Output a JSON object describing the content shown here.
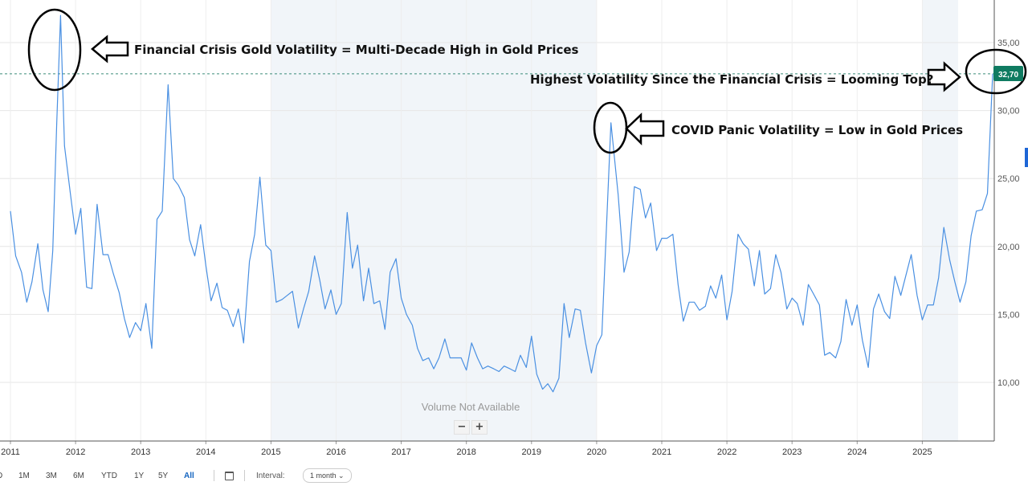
{
  "chart_data": {
    "type": "line",
    "x_tick_labels": [
      "2011",
      "2012",
      "2013",
      "2014",
      "2015",
      "2016",
      "2017",
      "2018",
      "2019",
      "2020",
      "2021",
      "2022",
      "2023",
      "2024",
      "2025"
    ],
    "y_tick_labels": [
      "10,00",
      "15,00",
      "20,00",
      "25,00",
      "30,00",
      "35,00"
    ],
    "ylim": [
      5,
      38
    ],
    "xlim": [
      2011.0,
      2026.1
    ],
    "grid": true,
    "series": [
      {
        "color": "#4a90e2",
        "x": [
          2011.0,
          2011.08,
          2011.17,
          2011.25,
          2011.33,
          2011.42,
          2011.5,
          2011.58,
          2011.65,
          2011.71,
          2011.77,
          2011.83,
          2011.92,
          2012.0,
          2012.08,
          2012.17,
          2012.25,
          2012.33,
          2012.42,
          2012.5,
          2012.58,
          2012.67,
          2012.75,
          2012.83,
          2012.92,
          2013.0,
          2013.08,
          2013.17,
          2013.25,
          2013.33,
          2013.42,
          2013.5,
          2013.58,
          2013.67,
          2013.75,
          2013.83,
          2013.92,
          2014.0,
          2014.08,
          2014.17,
          2014.25,
          2014.33,
          2014.42,
          2014.5,
          2014.58,
          2014.67,
          2014.75,
          2014.83,
          2014.92,
          2015.0,
          2015.08,
          2015.17,
          2015.25,
          2015.33,
          2015.42,
          2015.5,
          2015.58,
          2015.67,
          2015.75,
          2015.83,
          2015.92,
          2016.0,
          2016.08,
          2016.17,
          2016.25,
          2016.33,
          2016.42,
          2016.5,
          2016.58,
          2016.67,
          2016.75,
          2016.83,
          2016.92,
          2017.0,
          2017.08,
          2017.17,
          2017.25,
          2017.33,
          2017.42,
          2017.5,
          2017.58,
          2017.67,
          2017.75,
          2017.83,
          2017.92,
          2018.0,
          2018.08,
          2018.17,
          2018.25,
          2018.33,
          2018.42,
          2018.5,
          2018.58,
          2018.67,
          2018.75,
          2018.83,
          2018.92,
          2019.0,
          2019.08,
          2019.17,
          2019.25,
          2019.33,
          2019.42,
          2019.5,
          2019.58,
          2019.67,
          2019.75,
          2019.83,
          2019.92,
          2020.0,
          2020.08,
          2020.22,
          2020.33,
          2020.42,
          2020.5,
          2020.58,
          2020.67,
          2020.75,
          2020.83,
          2020.92,
          2021.0,
          2021.08,
          2021.17,
          2021.25,
          2021.33,
          2021.42,
          2021.5,
          2021.58,
          2021.67,
          2021.75,
          2021.83,
          2021.92,
          2022.0,
          2022.08,
          2022.17,
          2022.25,
          2022.33,
          2022.42,
          2022.5,
          2022.58,
          2022.67,
          2022.75,
          2022.83,
          2022.92,
          2023.0,
          2023.08,
          2023.17,
          2023.25,
          2023.33,
          2023.42,
          2023.5,
          2023.58,
          2023.67,
          2023.75,
          2023.83,
          2023.92,
          2024.0,
          2024.08,
          2024.17,
          2024.25,
          2024.33,
          2024.42,
          2024.5,
          2024.58,
          2024.67,
          2024.75,
          2024.83,
          2024.92,
          2025.0,
          2025.08,
          2025.17,
          2025.25,
          2025.33,
          2025.42,
          2025.5,
          2025.58,
          2025.67,
          2025.75,
          2025.83,
          2025.92,
          2026.0,
          2026.08
        ],
        "y": [
          22.6,
          19.3,
          18.1,
          15.9,
          17.4,
          20.2,
          16.8,
          15.2,
          19.7,
          29.0,
          37.0,
          27.4,
          23.9,
          20.9,
          22.8,
          17.0,
          16.9,
          23.1,
          19.4,
          19.4,
          18.0,
          16.6,
          14.7,
          13.3,
          14.4,
          13.8,
          15.8,
          12.5,
          22.0,
          22.6,
          31.9,
          25.0,
          24.5,
          23.6,
          20.5,
          19.3,
          21.6,
          18.6,
          16.0,
          17.3,
          15.5,
          15.3,
          14.1,
          15.4,
          12.9,
          18.9,
          20.9,
          25.1,
          20.1,
          19.7,
          15.9,
          16.1,
          16.4,
          16.7,
          14.0,
          15.4,
          16.7,
          19.3,
          17.5,
          15.4,
          16.8,
          15.0,
          15.8,
          22.5,
          18.4,
          20.1,
          16.0,
          18.4,
          15.8,
          16.0,
          13.9,
          18.1,
          19.1,
          16.2,
          15.0,
          14.2,
          12.5,
          11.6,
          11.8,
          11.0,
          11.8,
          13.2,
          11.8,
          11.8,
          11.8,
          10.9,
          12.9,
          11.8,
          11.0,
          11.2,
          11.0,
          10.8,
          11.2,
          11.0,
          10.8,
          12.0,
          11.1,
          13.4,
          10.6,
          9.5,
          9.9,
          9.3,
          10.3,
          15.8,
          13.3,
          15.4,
          15.3,
          12.9,
          10.7,
          12.7,
          13.5,
          29.1,
          23.8,
          18.1,
          19.6,
          24.4,
          24.2,
          22.1,
          23.2,
          19.7,
          20.6,
          20.6,
          20.9,
          17.2,
          14.5,
          15.9,
          15.9,
          15.3,
          15.6,
          17.1,
          16.2,
          17.9,
          14.6,
          16.7,
          20.9,
          20.2,
          19.8,
          17.1,
          19.7,
          16.5,
          16.9,
          19.4,
          18.1,
          15.4,
          16.2,
          15.8,
          14.2,
          17.2,
          16.5,
          15.7,
          12.0,
          12.2,
          11.8,
          13.0,
          16.1,
          14.2,
          15.7,
          13.1,
          11.1,
          15.4,
          16.5,
          15.2,
          14.7,
          17.8,
          16.4,
          17.9,
          19.4,
          16.4,
          14.6,
          15.7,
          15.7,
          17.7,
          21.4,
          19.0,
          17.4,
          15.9,
          17.4,
          20.8,
          22.6,
          22.7,
          23.9,
          32.7
        ]
      }
    ],
    "last_value_label": "32,70",
    "annotations": [
      "Financial Crisis Gold Volatility = Multi-Decade High in Gold Prices",
      "Highest Volatility Since the Financial Crisis = Looming Top?",
      "COVID Panic Volatility = Low in Gold Prices"
    ],
    "volume_message": "Volume Not Available"
  },
  "toolbar": {
    "ranges": [
      "D",
      "1M",
      "3M",
      "6M",
      "YTD",
      "1Y",
      "5Y",
      "All"
    ],
    "active_range": "All",
    "interval_label": "Interval:",
    "interval_value": "1 month",
    "zoom_out": "−",
    "zoom_in": "+"
  }
}
